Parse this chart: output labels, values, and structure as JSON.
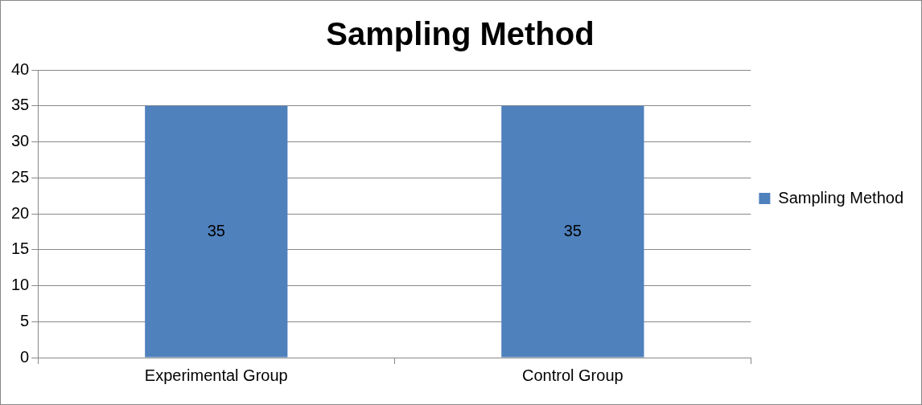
{
  "chart_data": {
    "type": "bar",
    "title": "Sampling Method",
    "categories": [
      "Experimental Group",
      "Control Group"
    ],
    "series": [
      {
        "name": "Sampling Method",
        "color": "#4f81bd",
        "values": [
          35,
          35
        ]
      }
    ],
    "ylim": [
      0,
      40
    ],
    "yticks": [
      0,
      5,
      10,
      15,
      20,
      25,
      30,
      35,
      40
    ],
    "grid": "y",
    "legend": "right",
    "data_labels": true
  }
}
